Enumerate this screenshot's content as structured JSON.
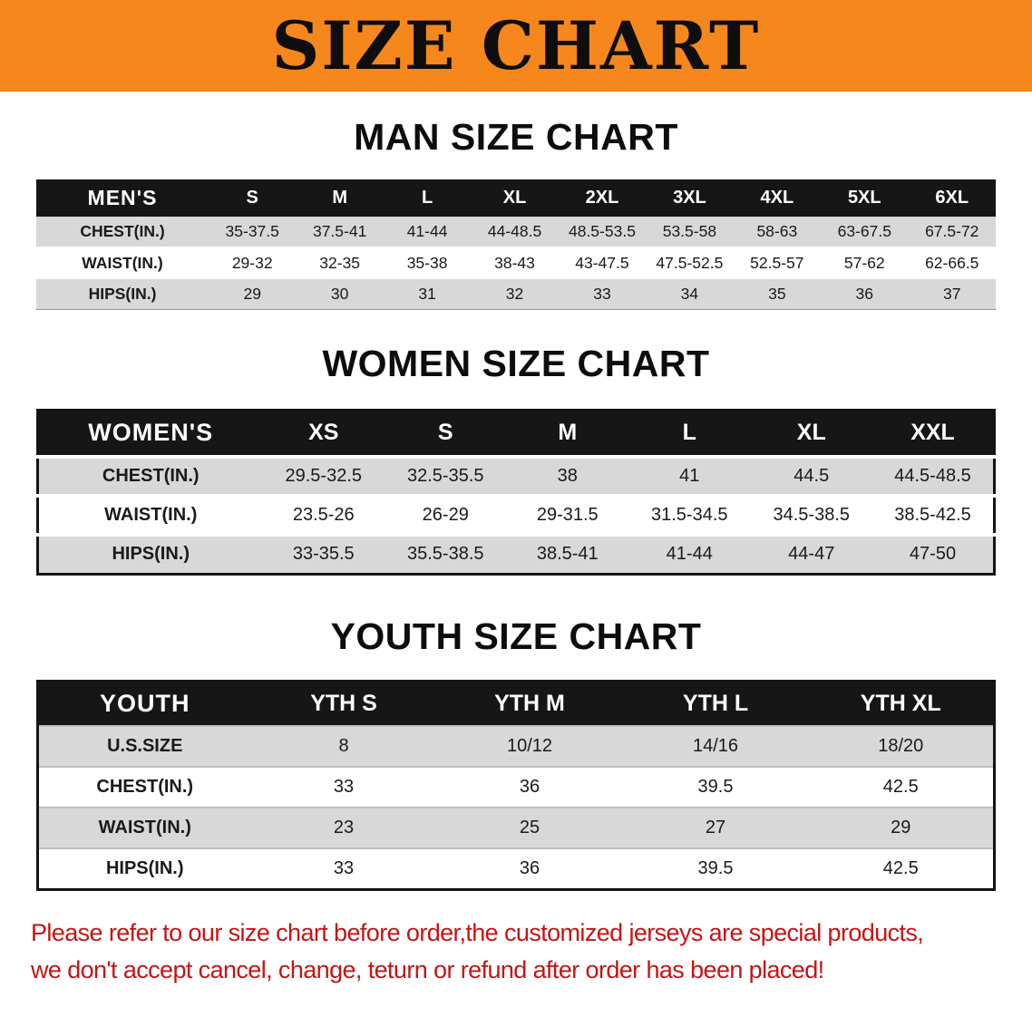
{
  "banner": {
    "title": "SIZE CHART"
  },
  "men_section": {
    "heading": "MAN SIZE CHART",
    "table": {
      "label": "MEN'S",
      "columns": [
        "S",
        "M",
        "L",
        "XL",
        "2XL",
        "3XL",
        "4XL",
        "5XL",
        "6XL"
      ],
      "rows": [
        {
          "label": "CHEST(IN.)",
          "values": [
            "35-37.5",
            "37.5-41",
            "41-44",
            "44-48.5",
            "48.5-53.5",
            "53.5-58",
            "58-63",
            "63-67.5",
            "67.5-72"
          ]
        },
        {
          "label": "WAIST(IN.)",
          "values": [
            "29-32",
            "32-35",
            "35-38",
            "38-43",
            "43-47.5",
            "47.5-52.5",
            "52.5-57",
            "57-62",
            "62-66.5"
          ]
        },
        {
          "label": "HIPS(IN.)",
          "values": [
            "29",
            "30",
            "31",
            "32",
            "33",
            "34",
            "35",
            "36",
            "37"
          ]
        }
      ]
    }
  },
  "women_section": {
    "heading": "WOMEN SIZE CHART",
    "table": {
      "label": "WOMEN'S",
      "columns": [
        "XS",
        "S",
        "M",
        "L",
        "XL",
        "XXL"
      ],
      "rows": [
        {
          "label": "CHEST(IN.)",
          "values": [
            "29.5-32.5",
            "32.5-35.5",
            "38",
            "41",
            "44.5",
            "44.5-48.5"
          ]
        },
        {
          "label": "WAIST(IN.)",
          "values": [
            "23.5-26",
            "26-29",
            "29-31.5",
            "31.5-34.5",
            "34.5-38.5",
            "38.5-42.5"
          ]
        },
        {
          "label": "HIPS(IN.)",
          "values": [
            "33-35.5",
            "35.5-38.5",
            "38.5-41",
            "41-44",
            "44-47",
            "47-50"
          ]
        }
      ]
    }
  },
  "youth_section": {
    "heading": "YOUTH SIZE CHART",
    "table": {
      "label": "YOUTH",
      "columns": [
        "YTH S",
        "YTH M",
        "YTH L",
        "YTH XL"
      ],
      "rows": [
        {
          "label": "U.S.SIZE",
          "values": [
            "8",
            "10/12",
            "14/16",
            "18/20"
          ]
        },
        {
          "label": "CHEST(IN.)",
          "values": [
            "33",
            "36",
            "39.5",
            "42.5"
          ]
        },
        {
          "label": "WAIST(IN.)",
          "values": [
            "23",
            "25",
            "27",
            "29"
          ]
        },
        {
          "label": "HIPS(IN.)",
          "values": [
            "33",
            "36",
            "39.5",
            "42.5"
          ]
        }
      ]
    }
  },
  "note": {
    "line1": "Please refer to our size chart before order,the customized jerseys are special products,",
    "line2": "we don't accept cancel, change, teturn or refund after order has been placed!",
    "color": "#C41414"
  },
  "colors": {
    "banner_bg": "#F6871D",
    "table_header_bg": "#161616",
    "row_stripe": "#D8D8D8",
    "note_red": "#C41414"
  }
}
